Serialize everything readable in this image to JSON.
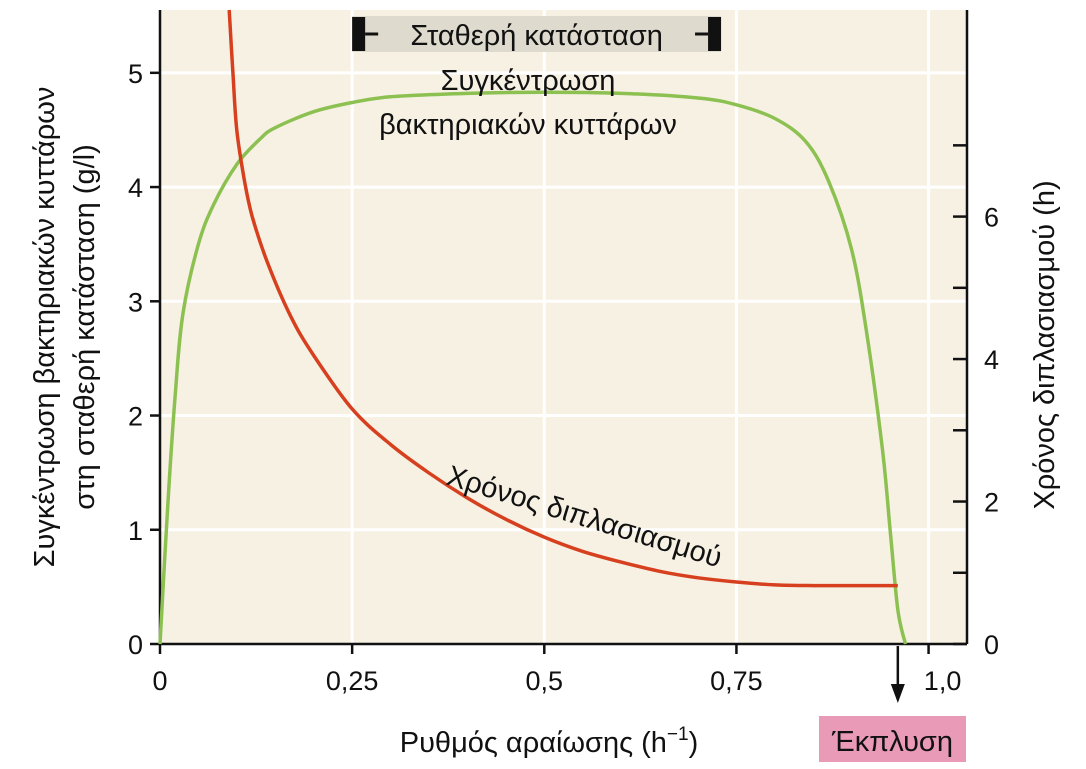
{
  "chart_data": {
    "type": "line",
    "xlabel": "Ρυθμός αραίωσης (h",
    "xlabel_sup": "−1",
    "xlabel_close": ")",
    "ylabel_left_line1": "Συγκέντρωση βακτηριακών κυττάρων",
    "ylabel_left_line2": "στη σταθερή κατάσταση (g/l)",
    "ylabel_right": "Χρόνος διπλασιασμού (h)",
    "xlim": [
      0,
      1.05
    ],
    "ylim_left": [
      0,
      5.55
    ],
    "ylim_right": [
      0,
      8.9
    ],
    "grid": true,
    "x_ticks": [
      {
        "value": 0,
        "label": "0"
      },
      {
        "value": 0.25,
        "label": "0,25"
      },
      {
        "value": 0.5,
        "label": "0,5"
      },
      {
        "value": 0.75,
        "label": "0,75"
      },
      {
        "value": 1.0,
        "label": "1,0"
      }
    ],
    "y_left_ticks": [
      {
        "value": 0,
        "label": "0"
      },
      {
        "value": 1,
        "label": "1"
      },
      {
        "value": 2,
        "label": "2"
      },
      {
        "value": 3,
        "label": "3"
      },
      {
        "value": 4,
        "label": "4"
      },
      {
        "value": 5,
        "label": "5"
      }
    ],
    "y_right_ticks": [
      {
        "value": 0,
        "label": "0"
      },
      {
        "value": 1,
        "label": ""
      },
      {
        "value": 2,
        "label": "2"
      },
      {
        "value": 3,
        "label": ""
      },
      {
        "value": 4,
        "label": "4"
      },
      {
        "value": 5,
        "label": ""
      },
      {
        "value": 6,
        "label": "6"
      },
      {
        "value": 7,
        "label": ""
      }
    ],
    "series": [
      {
        "name": "Συγκέντρωση βακτηριακών κυττάρων",
        "name_line1": "Συγκέντρωση",
        "name_line2": "βακτηριακών κυττάρων",
        "axis": "left",
        "color": "#8cc152",
        "x": [
          0.0,
          0.01,
          0.02,
          0.03,
          0.05,
          0.07,
          0.1,
          0.13,
          0.15,
          0.2,
          0.25,
          0.3,
          0.4,
          0.5,
          0.6,
          0.7,
          0.75,
          0.8,
          0.84,
          0.87,
          0.9,
          0.92,
          0.94,
          0.95,
          0.96,
          0.97
        ],
        "y": [
          0.0,
          1.2,
          2.2,
          2.9,
          3.5,
          3.85,
          4.2,
          4.42,
          4.52,
          4.66,
          4.74,
          4.79,
          4.82,
          4.83,
          4.82,
          4.78,
          4.72,
          4.6,
          4.4,
          4.05,
          3.45,
          2.7,
          1.7,
          1.0,
          0.3,
          0.0
        ]
      },
      {
        "name": "Χρόνος διπλασιασμού",
        "axis": "right",
        "color": "#d7401e",
        "x": [
          0.09,
          0.095,
          0.1,
          0.11,
          0.12,
          0.14,
          0.17,
          0.2,
          0.25,
          0.3,
          0.35,
          0.4,
          0.45,
          0.5,
          0.55,
          0.6,
          0.65,
          0.7,
          0.75,
          0.8,
          0.85,
          0.9,
          0.95,
          0.96
        ],
        "y": [
          8.9,
          8.0,
          7.2,
          6.5,
          6.0,
          5.35,
          4.6,
          4.05,
          3.3,
          2.8,
          2.4,
          2.05,
          1.75,
          1.5,
          1.3,
          1.15,
          1.02,
          0.93,
          0.87,
          0.83,
          0.82,
          0.82,
          0.82,
          0.82
        ]
      }
    ],
    "annotations": {
      "steady_state": "Σταθερή κατάσταση",
      "steady_state_range": [
        0.25,
        0.73
      ],
      "washout": "Έκπλυση",
      "washout_x": 0.96,
      "doubling_label": "Χρόνος διπλασιασμού"
    },
    "colors": {
      "plot_background": "#f7f1e4",
      "grid": "#ffffff",
      "axis": "#111111",
      "steady_state_box": "#dedacd",
      "washout_box": "#e89ab7"
    }
  }
}
